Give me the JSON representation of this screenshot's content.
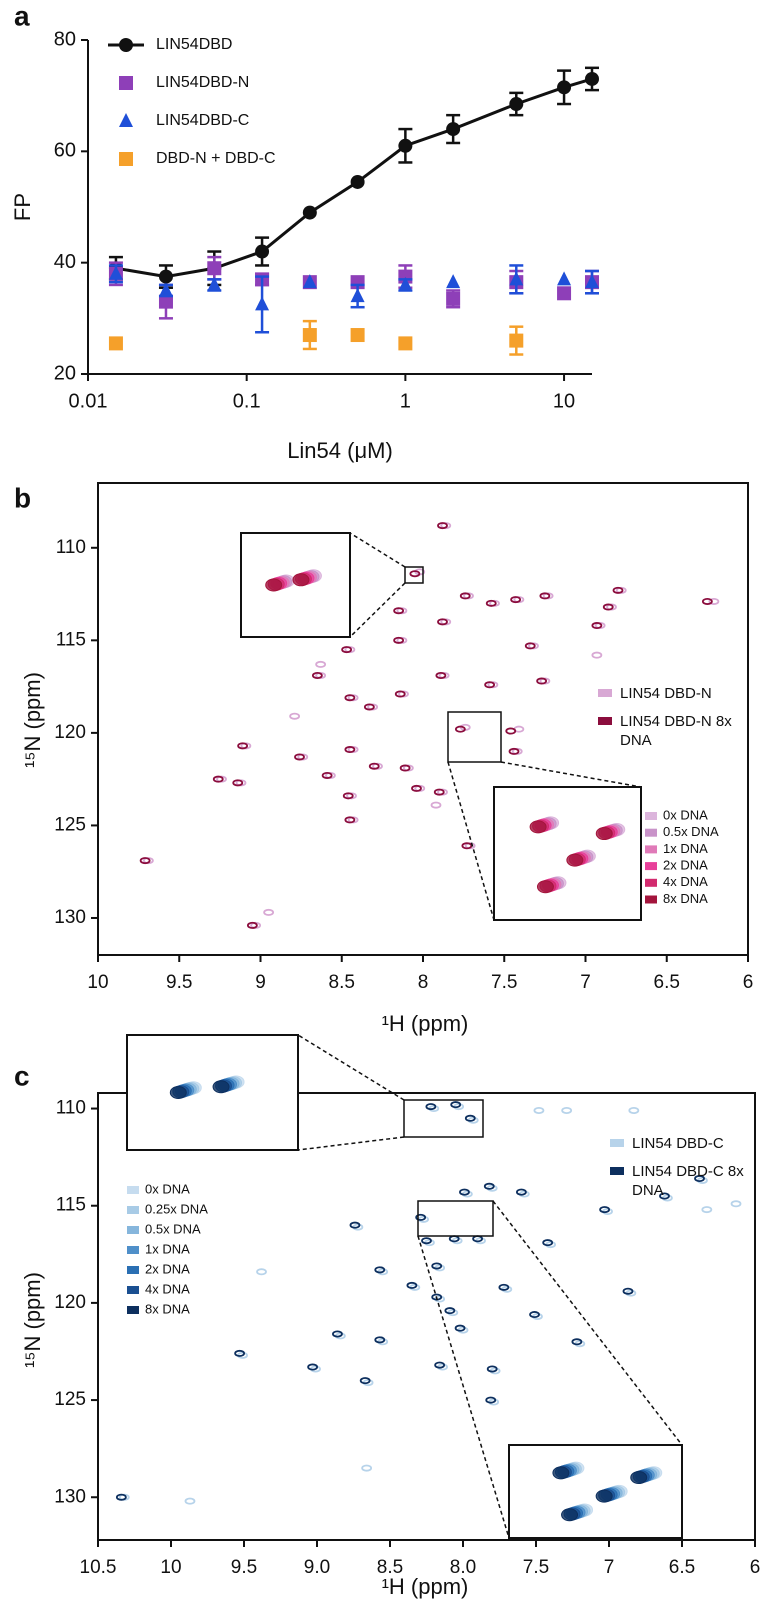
{
  "chart_data": [
    {
      "type": "line",
      "panel_label": "a",
      "xlabel": "Lin54 (μM)",
      "ylabel": "FP",
      "xscale": "log",
      "xlim": [
        0.01,
        15
      ],
      "xticks": [
        0.01,
        0.1,
        1,
        10
      ],
      "ylim": [
        20,
        80
      ],
      "yticks": [
        20,
        40,
        60,
        80
      ],
      "legend": "upper left",
      "series": [
        {
          "name": "LIN54DBD",
          "color": "#111111",
          "marker": "circle",
          "connect": true,
          "x": [
            0.015,
            0.031,
            0.0625,
            0.125,
            0.25,
            0.5,
            1,
            2,
            5,
            10,
            15
          ],
          "values": [
            39,
            37.5,
            39,
            42,
            49,
            54.5,
            61,
            64,
            68.5,
            71.5,
            73
          ],
          "errors": [
            2,
            2,
            3,
            2.5,
            null,
            null,
            3,
            2.5,
            2,
            3,
            2
          ]
        },
        {
          "name": "LIN54DBD-N",
          "color": "#8e3fb8",
          "marker": "square",
          "connect": false,
          "x": [
            0.015,
            0.031,
            0.0625,
            0.125,
            0.25,
            0.5,
            1,
            2,
            5,
            10,
            15
          ],
          "values": [
            38,
            33,
            39,
            37,
            36.5,
            36.5,
            37.5,
            33.5,
            36.5,
            34.5,
            36.5
          ],
          "errors": [
            2,
            3,
            2,
            1,
            null,
            null,
            2,
            1.5,
            2,
            null,
            2
          ]
        },
        {
          "name": "LIN54DBD-C",
          "color": "#1f4fd8",
          "marker": "triangle",
          "connect": false,
          "x": [
            0.015,
            0.031,
            0.0625,
            0.125,
            0.25,
            0.5,
            1,
            2,
            5,
            10,
            15
          ],
          "values": [
            38,
            35,
            36,
            32.5,
            36.5,
            34,
            36,
            36.5,
            37,
            37,
            36.5
          ],
          "errors": [
            1.5,
            1,
            1,
            5,
            null,
            2,
            1,
            null,
            2.5,
            null,
            2
          ]
        },
        {
          "name": "DBD-N + DBD-C",
          "color": "#f5a02a",
          "marker": "square",
          "connect": false,
          "x": [
            0.015,
            0.25,
            0.5,
            1,
            5
          ],
          "values": [
            25.5,
            27,
            27,
            25.5,
            26
          ],
          "errors": [
            null,
            2.5,
            null,
            null,
            2.5
          ]
        }
      ]
    },
    {
      "type": "scatter",
      "panel_label": "b",
      "xlabel": "¹H (ppm)",
      "ylabel": "¹⁵N (ppm)",
      "xlim": [
        10,
        6
      ],
      "xticks": [
        10,
        9.5,
        9,
        8.5,
        8,
        7.5,
        7,
        6.5,
        6
      ],
      "ylim": [
        132,
        106.5
      ],
      "yticks": [
        110,
        115,
        120,
        125,
        130
      ],
      "series": [
        {
          "name": "LIN54 DBD-N",
          "color": "#d8a8d4",
          "x": [
            7.86,
            8.02,
            7.72,
            7.56,
            7.41,
            7.23,
            6.84,
            6.78,
            6.21,
            8.13,
            7.86,
            8.13,
            7.32,
            6.91,
            8.45,
            8.63,
            7.87,
            7.25,
            7.57,
            8.12,
            8.43,
            8.31,
            9.09,
            9.24,
            9.12,
            8.74,
            8.43,
            8.28,
            8.09,
            8.44,
            8.02,
            7.88,
            7.71,
            8.57,
            8.43,
            9.69,
            9.03,
            7.74,
            7.42,
            7.41,
            8.79,
            8.63,
            8.95,
            6.93,
            7.92
          ],
          "values": [
            108.8,
            111.3,
            112.6,
            113.0,
            112.8,
            112.6,
            113.2,
            112.3,
            112.9,
            113.4,
            114.0,
            115.0,
            115.3,
            114.2,
            115.5,
            116.9,
            116.9,
            117.2,
            117.4,
            117.9,
            118.1,
            118.6,
            120.7,
            122.5,
            122.7,
            121.3,
            120.9,
            121.8,
            121.9,
            123.4,
            123.0,
            123.2,
            126.1,
            122.3,
            124.7,
            126.9,
            130.4,
            119.7,
            121.0,
            119.8,
            119.1,
            116.3,
            129.7,
            115.8,
            123.9
          ]
        },
        {
          "name": "LIN54 DBD-N 8x DNA",
          "color": "#8b0d3d",
          "x": [
            7.88,
            8.05,
            7.74,
            7.58,
            7.43,
            7.25,
            6.86,
            6.8,
            6.25,
            8.15,
            7.88,
            8.15,
            7.34,
            6.93,
            8.47,
            8.65,
            7.89,
            7.27,
            7.59,
            8.14,
            8.45,
            8.33,
            9.11,
            9.26,
            9.14,
            8.76,
            8.45,
            8.3,
            8.11,
            8.46,
            8.04,
            7.9,
            7.73,
            8.59,
            8.45,
            9.71,
            9.05,
            7.77,
            7.44,
            7.46
          ],
          "values": [
            108.8,
            111.4,
            112.6,
            113.0,
            112.8,
            112.6,
            113.2,
            112.3,
            112.9,
            113.4,
            114.0,
            115.0,
            115.3,
            114.2,
            115.5,
            116.9,
            116.9,
            117.2,
            117.4,
            117.9,
            118.1,
            118.6,
            120.7,
            122.5,
            122.7,
            121.3,
            120.9,
            121.8,
            121.9,
            123.4,
            123.0,
            123.2,
            126.1,
            122.3,
            124.7,
            126.9,
            130.4,
            119.8,
            121.0,
            119.9
          ]
        }
      ],
      "inset_legend": [
        {
          "label": "0x DNA",
          "color": "#dcb5dc"
        },
        {
          "label": "0.5x DNA",
          "color": "#c993c9"
        },
        {
          "label": "1x DNA",
          "color": "#e07ab8"
        },
        {
          "label": "2x DNA",
          "color": "#e8409a"
        },
        {
          "label": "4x DNA",
          "color": "#d22a6e"
        },
        {
          "label": "8x DNA",
          "color": "#a3143c"
        }
      ]
    },
    {
      "type": "scatter",
      "panel_label": "c",
      "xlabel": "¹H (ppm)",
      "ylabel": "¹⁵N (ppm)",
      "xlim": [
        10.5,
        6
      ],
      "xticks": [
        10.5,
        10,
        9.5,
        {
          "value": 9,
          "label": "9.0"
        },
        8.5,
        {
          "value": 8,
          "label": "8.0"
        },
        7.5,
        7,
        6.5,
        6
      ],
      "ylim": [
        132.2,
        109.2
      ],
      "yticks": [
        110,
        115,
        120,
        125,
        130
      ],
      "series": [
        {
          "name": "LIN54 DBD-C",
          "color": "#b7d3ea",
          "x": [
            8.2,
            8.03,
            7.93,
            7.97,
            7.8,
            7.58,
            7.01,
            6.6,
            6.36,
            8.27,
            8.72,
            8.23,
            8.04,
            7.88,
            8.16,
            7.4,
            8.55,
            8.33,
            8.16,
            8.07,
            8.0,
            7.7,
            7.49,
            8.84,
            8.55,
            8.14,
            7.78,
            7.79,
            8.65,
            9.01,
            9.51,
            10.32,
            7.2,
            6.85,
            7.48,
            7.29,
            6.83,
            6.33,
            6.13,
            9.38,
            9.87,
            8.66
          ],
          "values": [
            110.0,
            109.9,
            110.6,
            114.4,
            114.1,
            114.4,
            115.3,
            114.6,
            113.7,
            115.7,
            116.1,
            116.9,
            116.8,
            116.8,
            118.2,
            117.0,
            118.4,
            119.2,
            119.8,
            120.5,
            121.4,
            119.3,
            120.7,
            121.7,
            122.0,
            123.3,
            123.5,
            125.1,
            124.1,
            123.4,
            122.7,
            130.0,
            122.1,
            119.5,
            110.1,
            110.1,
            110.1,
            115.2,
            114.9,
            118.4,
            130.2,
            128.5
          ]
        },
        {
          "name": "LIN54 DBD-C 8x DNA",
          "color": "#0d2f5e",
          "x": [
            8.22,
            8.05,
            7.95,
            7.99,
            7.82,
            7.6,
            7.03,
            6.62,
            6.38,
            8.29,
            8.74,
            8.25,
            8.06,
            7.9,
            8.18,
            7.42,
            8.57,
            8.35,
            8.18,
            8.09,
            8.02,
            7.72,
            7.51,
            8.86,
            8.57,
            8.16,
            7.8,
            7.81,
            8.67,
            9.03,
            9.53,
            10.34,
            7.22,
            6.87
          ],
          "values": [
            109.9,
            109.8,
            110.5,
            114.3,
            114.0,
            114.3,
            115.2,
            114.5,
            113.6,
            115.6,
            116.0,
            116.8,
            116.7,
            116.7,
            118.1,
            116.9,
            118.3,
            119.1,
            119.7,
            120.4,
            121.3,
            119.2,
            120.6,
            121.6,
            121.9,
            123.2,
            123.4,
            125.0,
            124.0,
            123.3,
            122.6,
            130.0,
            122.0,
            119.4
          ]
        }
      ],
      "inset_legend": [
        {
          "label": "0x DNA",
          "color": "#c6dcef"
        },
        {
          "label": "0.25x DNA",
          "color": "#a8cbe6"
        },
        {
          "label": "0.5x DNA",
          "color": "#86b6dc"
        },
        {
          "label": "1x DNA",
          "color": "#4f8fc9"
        },
        {
          "label": "2x DNA",
          "color": "#2a6fb3"
        },
        {
          "label": "4x DNA",
          "color": "#1a4f91"
        },
        {
          "label": "8x DNA",
          "color": "#0d2f5e"
        }
      ]
    }
  ]
}
